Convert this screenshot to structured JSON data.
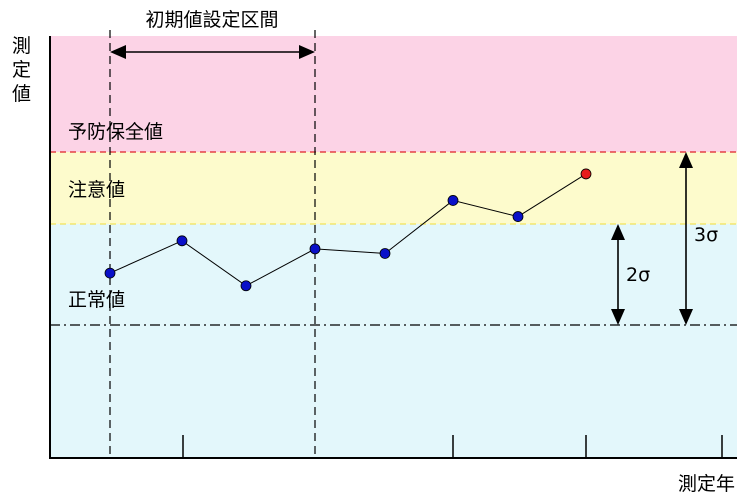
{
  "y_axis_label": [
    "測",
    "定",
    "値"
  ],
  "x_axis_label": "測定年",
  "initial_interval_label": "初期値設定区間",
  "zones": {
    "preventive": {
      "label": "予防保全値",
      "color": "#fcd3e6"
    },
    "caution": {
      "label": "注意値",
      "color": "#fdfbcc"
    },
    "normal": {
      "label": "正常値",
      "color": "#e3f7fb"
    }
  },
  "sigma_labels": {
    "two": "2σ",
    "three": "3σ"
  },
  "colors": {
    "preventive_line": "#e0202a",
    "caution_line": "#f2e25a",
    "mean_line": "#000000",
    "point": "#0a10c8",
    "alert_point": "#e61c1c"
  },
  "series": [
    {
      "index": 1,
      "level": 0.45,
      "alert": false
    },
    {
      "index": 2,
      "level": 0.73,
      "alert": false
    },
    {
      "index": 3,
      "level": 0.34,
      "alert": false
    },
    {
      "index": 4,
      "level": 0.66,
      "alert": false
    },
    {
      "index": 5,
      "level": 0.62,
      "alert": false
    },
    {
      "index": 6,
      "level": 1.08,
      "alert": false
    },
    {
      "index": 7,
      "level": 0.94,
      "alert": false
    },
    {
      "index": 8,
      "level": 1.31,
      "alert": true
    }
  ]
}
